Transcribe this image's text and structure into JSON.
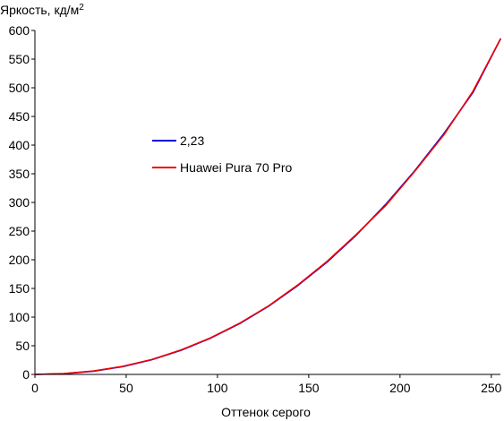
{
  "chart_data": {
    "type": "line",
    "xlabel": "Оттенок серого",
    "ylabel": "Яркость, кд/м",
    "ylabel_superscript": "2",
    "xlim": [
      0,
      255
    ],
    "ylim": [
      0,
      600
    ],
    "x_ticks": [
      0,
      50,
      100,
      150,
      200,
      250
    ],
    "y_ticks": [
      0,
      50,
      100,
      150,
      200,
      250,
      300,
      350,
      400,
      450,
      500,
      550,
      600
    ],
    "grid": false,
    "legend_position": "center-left",
    "series": [
      {
        "name": "2,23",
        "color": "#0000dd",
        "x": [
          0,
          16,
          32,
          48,
          64,
          80,
          96,
          112,
          128,
          144,
          160,
          176,
          192,
          208,
          224,
          240,
          255
        ],
        "y": [
          0,
          1.2,
          5.6,
          13.6,
          25.6,
          42,
          63,
          88.5,
          119,
          155,
          196,
          243,
          296,
          355,
          420,
          492,
          585
        ]
      },
      {
        "name": "Huawei Pura 70 Pro",
        "color": "#ee0000",
        "x": [
          0,
          16,
          32,
          48,
          64,
          80,
          96,
          112,
          128,
          144,
          160,
          176,
          192,
          208,
          224,
          240,
          255
        ],
        "y": [
          0,
          1.5,
          6,
          14,
          26,
          42.5,
          63.5,
          89,
          119.5,
          156,
          197,
          244,
          294,
          354,
          418,
          494,
          585
        ]
      }
    ]
  }
}
